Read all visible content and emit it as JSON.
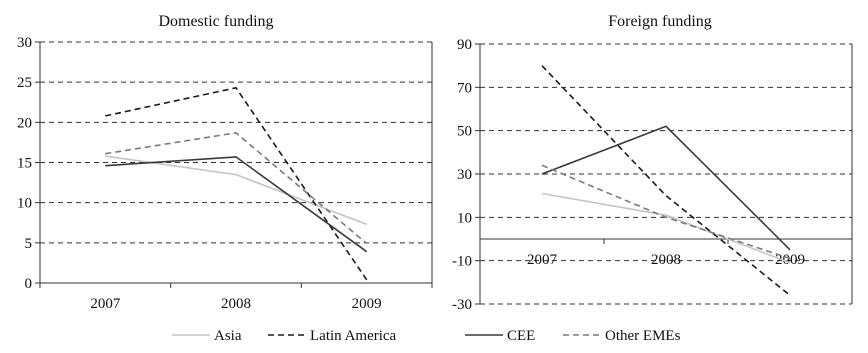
{
  "colors": {
    "Asia": "#c4c4c4",
    "Latin America": "#1a1a1a",
    "CEE": "#3a3a3a",
    "Other EMEs": "#7a7a7a",
    "grid": "#333333",
    "axis": "#333333"
  },
  "chart_data": [
    {
      "type": "line",
      "title": "Domestic funding",
      "categories": [
        "2007",
        "2008",
        "2009"
      ],
      "ylim": [
        0,
        30
      ],
      "yticks": [
        0,
        5,
        10,
        15,
        20,
        25,
        30
      ],
      "grid": "horizontal dashed",
      "series": [
        {
          "name": "Asia",
          "values": [
            15.8,
            13.5,
            7.3
          ]
        },
        {
          "name": "Latin America",
          "values": [
            20.8,
            24.3,
            0.4
          ]
        },
        {
          "name": "CEE",
          "values": [
            14.6,
            15.7,
            3.9
          ]
        },
        {
          "name": "Other EMEs",
          "values": [
            16.1,
            18.7,
            4.9
          ]
        }
      ]
    },
    {
      "type": "line",
      "title": "Foreign funding",
      "categories": [
        "2007",
        "2008",
        "2009"
      ],
      "ylim": [
        -30,
        90
      ],
      "yticks": [
        -30,
        -10,
        10,
        30,
        50,
        70,
        90
      ],
      "grid": "horizontal dashed",
      "series": [
        {
          "name": "Asia",
          "values": [
            21,
            11,
            -11
          ]
        },
        {
          "name": "Latin America",
          "values": [
            80,
            20,
            -26
          ]
        },
        {
          "name": "CEE",
          "values": [
            30,
            52,
            -5
          ]
        },
        {
          "name": "Other EMEs",
          "values": [
            34,
            10,
            -9
          ]
        }
      ]
    }
  ],
  "legend": {
    "placement": "bottom",
    "items": [
      "Asia",
      "Latin America",
      "CEE",
      "Other EMEs"
    ]
  }
}
